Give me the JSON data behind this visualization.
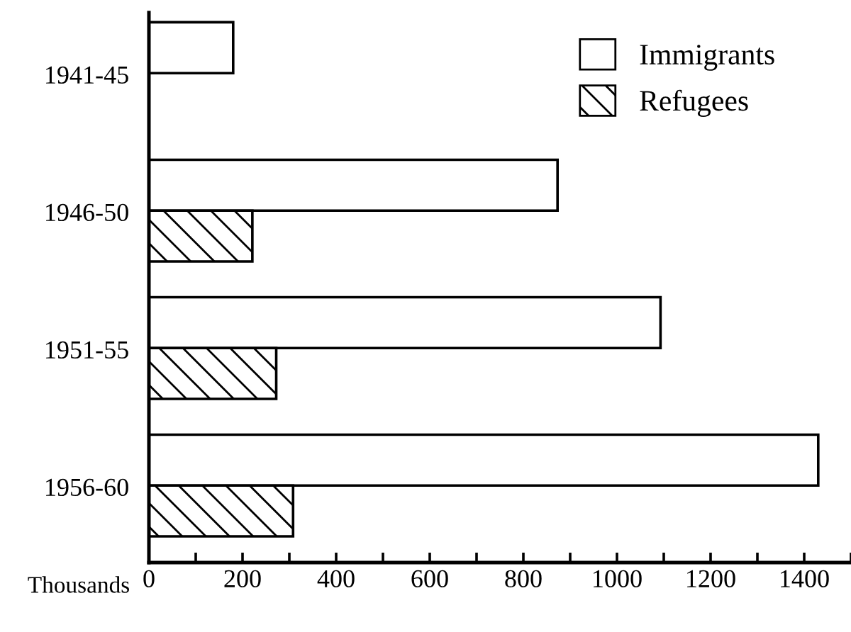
{
  "chart_data": {
    "type": "bar",
    "orientation": "horizontal",
    "categories": [
      "1941-45",
      "1946-50",
      "1951-55",
      "1956-60"
    ],
    "series": [
      {
        "name": "Immigrants",
        "color": "#ffffff",
        "values": [
          180,
          873,
          1093,
          1430
        ]
      },
      {
        "name": "Refugees",
        "color": "#000000",
        "values": [
          null,
          221,
          272,
          308
        ]
      }
    ],
    "xlabel": "Thousands",
    "xlim": [
      0,
      1500
    ],
    "xticks": [
      0,
      {
        "value": 100,
        "label": null
      },
      200,
      {
        "value": 300,
        "label": null
      },
      400,
      {
        "value": 500,
        "label": null
      },
      600,
      {
        "value": 700,
        "label": null
      },
      800,
      {
        "value": 900,
        "label": null
      },
      1000,
      {
        "value": 1100,
        "label": null
      },
      1200,
      {
        "value": 1300,
        "label": null
      },
      1400,
      {
        "value": 1500,
        "label": null
      }
    ],
    "legend": "top right",
    "grid": false
  }
}
